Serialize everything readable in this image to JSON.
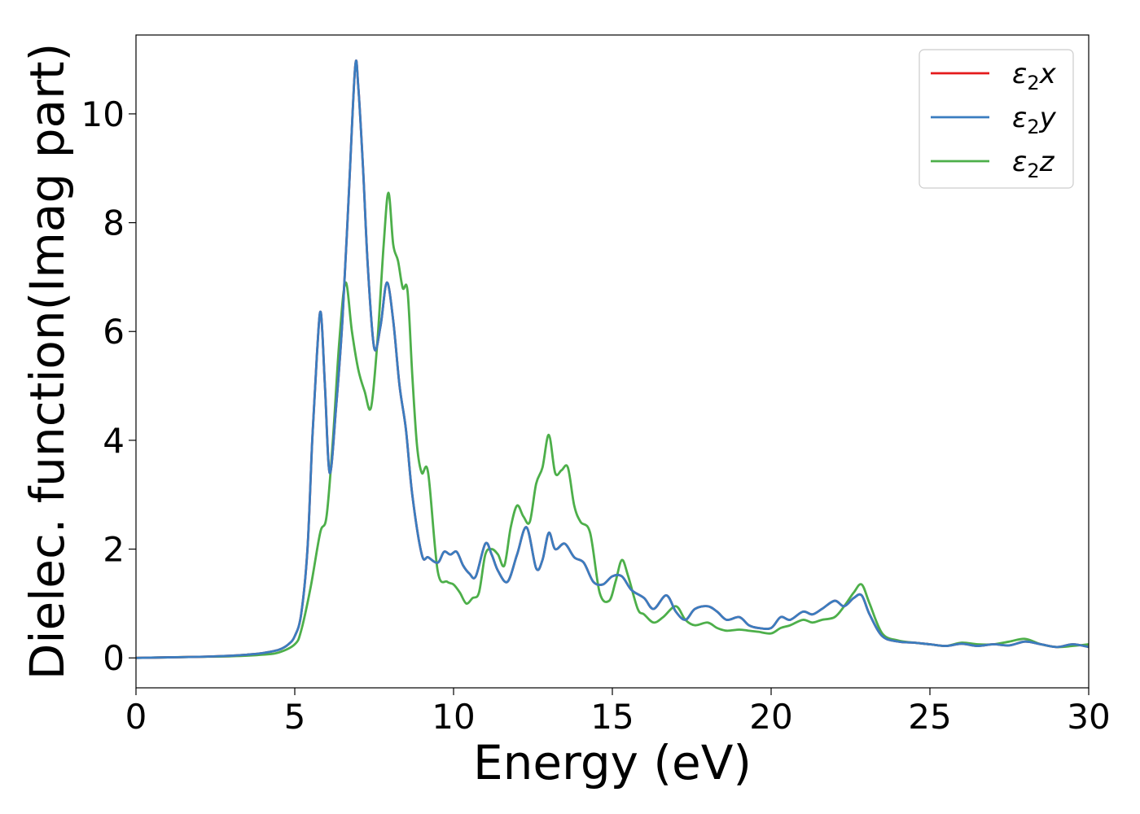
{
  "chart_data": {
    "type": "line",
    "xlabel": "Energy (eV)",
    "ylabel": "Dielec. function(Imag part)",
    "xlim": [
      0,
      30
    ],
    "ylim": [
      -0.55,
      11.45
    ],
    "xticks": [
      0,
      5,
      10,
      15,
      20,
      25,
      30
    ],
    "yticks": [
      0,
      2,
      4,
      6,
      8,
      10
    ],
    "grid": false,
    "legend_position": "top-right",
    "series": [
      {
        "name": "ε₂x",
        "legend_main": "ε",
        "legend_sub": "2",
        "legend_var": "x",
        "color": "#e41a1c",
        "x": [
          0,
          1,
          2,
          3,
          3.5,
          4,
          4.5,
          4.8,
          5.0,
          5.2,
          5.4,
          5.55,
          5.7,
          5.82,
          5.95,
          6.1,
          6.3,
          6.5,
          6.7,
          6.9,
          7.0,
          7.15,
          7.3,
          7.5,
          7.7,
          7.9,
          8.1,
          8.3,
          8.5,
          8.7,
          9.0,
          9.2,
          9.5,
          9.7,
          9.9,
          10.1,
          10.3,
          10.5,
          10.7,
          11.0,
          11.2,
          11.4,
          11.7,
          12.0,
          12.3,
          12.6,
          12.8,
          13.0,
          13.2,
          13.5,
          13.8,
          14.1,
          14.4,
          14.7,
          15.0,
          15.3,
          15.6,
          16.0,
          16.3,
          16.7,
          17.0,
          17.3,
          17.6,
          18.0,
          18.3,
          18.6,
          19.0,
          19.3,
          19.6,
          20.0,
          20.3,
          20.6,
          21.0,
          21.3,
          21.6,
          22.0,
          22.3,
          22.6,
          22.85,
          23.1,
          23.5,
          24.0,
          24.5,
          25.0,
          25.5,
          26.0,
          26.5,
          27.0,
          27.5,
          28.0,
          28.5,
          29.0,
          29.5,
          30.0
        ],
        "y": [
          0,
          0.01,
          0.02,
          0.04,
          0.06,
          0.09,
          0.15,
          0.25,
          0.4,
          0.8,
          2.0,
          4.0,
          5.6,
          6.35,
          5.0,
          3.4,
          4.6,
          6.2,
          8.5,
          10.85,
          10.5,
          9.0,
          7.2,
          5.7,
          6.1,
          6.9,
          6.2,
          5.0,
          4.2,
          3.0,
          1.9,
          1.85,
          1.75,
          1.95,
          1.9,
          1.95,
          1.7,
          1.55,
          1.5,
          2.1,
          1.9,
          1.6,
          1.4,
          1.9,
          2.4,
          1.65,
          1.8,
          2.3,
          2.0,
          2.1,
          1.85,
          1.75,
          1.4,
          1.35,
          1.5,
          1.5,
          1.25,
          1.1,
          0.9,
          1.15,
          0.85,
          0.7,
          0.9,
          0.95,
          0.85,
          0.7,
          0.75,
          0.6,
          0.55,
          0.55,
          0.75,
          0.7,
          0.85,
          0.8,
          0.9,
          1.05,
          0.95,
          1.1,
          1.15,
          0.8,
          0.4,
          0.3,
          0.28,
          0.25,
          0.22,
          0.26,
          0.22,
          0.25,
          0.23,
          0.3,
          0.25,
          0.2,
          0.25,
          0.2
        ]
      },
      {
        "name": "ε₂y",
        "legend_main": "ε",
        "legend_sub": "2",
        "legend_var": "y",
        "color": "#3a7dc0",
        "x": [
          0,
          1,
          2,
          3,
          3.5,
          4,
          4.5,
          4.8,
          5.0,
          5.2,
          5.4,
          5.55,
          5.7,
          5.82,
          5.95,
          6.1,
          6.3,
          6.5,
          6.7,
          6.9,
          7.0,
          7.15,
          7.3,
          7.5,
          7.7,
          7.9,
          8.1,
          8.3,
          8.5,
          8.7,
          9.0,
          9.2,
          9.5,
          9.7,
          9.9,
          10.1,
          10.3,
          10.5,
          10.7,
          11.0,
          11.2,
          11.4,
          11.7,
          12.0,
          12.3,
          12.6,
          12.8,
          13.0,
          13.2,
          13.5,
          13.8,
          14.1,
          14.4,
          14.7,
          15.0,
          15.3,
          15.6,
          16.0,
          16.3,
          16.7,
          17.0,
          17.3,
          17.6,
          18.0,
          18.3,
          18.6,
          19.0,
          19.3,
          19.6,
          20.0,
          20.3,
          20.6,
          21.0,
          21.3,
          21.6,
          22.0,
          22.3,
          22.6,
          22.85,
          23.1,
          23.5,
          24.0,
          24.5,
          25.0,
          25.5,
          26.0,
          26.5,
          27.0,
          27.5,
          28.0,
          28.5,
          29.0,
          29.5,
          30.0
        ],
        "y": [
          0,
          0.01,
          0.02,
          0.04,
          0.06,
          0.09,
          0.15,
          0.25,
          0.4,
          0.8,
          2.0,
          4.0,
          5.6,
          6.35,
          5.0,
          3.4,
          4.6,
          6.2,
          8.5,
          10.85,
          10.5,
          9.0,
          7.2,
          5.7,
          6.1,
          6.9,
          6.2,
          5.0,
          4.2,
          3.0,
          1.9,
          1.85,
          1.75,
          1.95,
          1.9,
          1.95,
          1.7,
          1.55,
          1.5,
          2.1,
          1.9,
          1.6,
          1.4,
          1.9,
          2.4,
          1.65,
          1.8,
          2.3,
          2.0,
          2.1,
          1.85,
          1.75,
          1.4,
          1.35,
          1.5,
          1.5,
          1.25,
          1.1,
          0.9,
          1.15,
          0.85,
          0.7,
          0.9,
          0.95,
          0.85,
          0.7,
          0.75,
          0.6,
          0.55,
          0.55,
          0.75,
          0.7,
          0.85,
          0.8,
          0.9,
          1.05,
          0.95,
          1.1,
          1.15,
          0.8,
          0.4,
          0.3,
          0.28,
          0.25,
          0.22,
          0.26,
          0.22,
          0.25,
          0.23,
          0.3,
          0.25,
          0.2,
          0.25,
          0.2
        ]
      },
      {
        "name": "ε₂z",
        "legend_main": "ε",
        "legend_sub": "2",
        "legend_var": "z",
        "color": "#4daf4a",
        "x": [
          0,
          1,
          2,
          3,
          4,
          4.5,
          5.0,
          5.2,
          5.5,
          5.8,
          6.0,
          6.2,
          6.4,
          6.6,
          6.8,
          7.0,
          7.2,
          7.4,
          7.6,
          7.8,
          7.95,
          8.1,
          8.25,
          8.4,
          8.55,
          8.7,
          8.85,
          9.0,
          9.2,
          9.5,
          9.8,
          10.0,
          10.2,
          10.4,
          10.6,
          10.8,
          11.0,
          11.2,
          11.4,
          11.6,
          11.8,
          12.0,
          12.2,
          12.4,
          12.6,
          12.8,
          13.0,
          13.2,
          13.4,
          13.6,
          13.8,
          14.0,
          14.3,
          14.6,
          14.9,
          15.1,
          15.3,
          15.5,
          15.8,
          16.0,
          16.3,
          16.6,
          17.0,
          17.3,
          17.6,
          18.0,
          18.3,
          18.6,
          19.0,
          19.3,
          19.6,
          20.0,
          20.3,
          20.6,
          21.0,
          21.3,
          21.6,
          22.0,
          22.3,
          22.6,
          22.85,
          23.1,
          23.5,
          24.0,
          24.5,
          25.0,
          25.5,
          26.0,
          26.5,
          27.0,
          27.5,
          28.0,
          28.5,
          29.0,
          29.5,
          30.0
        ],
        "y": [
          0,
          0.01,
          0.02,
          0.03,
          0.06,
          0.1,
          0.25,
          0.5,
          1.3,
          2.3,
          2.6,
          4.0,
          5.8,
          6.9,
          6.0,
          5.3,
          4.9,
          4.6,
          5.8,
          7.6,
          8.55,
          7.6,
          7.3,
          6.8,
          6.75,
          5.2,
          3.9,
          3.4,
          3.4,
          1.6,
          1.4,
          1.35,
          1.2,
          1.0,
          1.1,
          1.2,
          1.9,
          2.0,
          1.9,
          1.7,
          2.4,
          2.8,
          2.6,
          2.5,
          3.2,
          3.5,
          4.1,
          3.4,
          3.45,
          3.5,
          2.8,
          2.5,
          2.3,
          1.2,
          1.05,
          1.4,
          1.8,
          1.5,
          0.9,
          0.8,
          0.65,
          0.75,
          0.95,
          0.7,
          0.6,
          0.65,
          0.55,
          0.5,
          0.52,
          0.5,
          0.48,
          0.45,
          0.55,
          0.6,
          0.7,
          0.65,
          0.7,
          0.75,
          0.95,
          1.2,
          1.35,
          1.0,
          0.45,
          0.32,
          0.28,
          0.25,
          0.22,
          0.28,
          0.25,
          0.25,
          0.3,
          0.35,
          0.25,
          0.2,
          0.22,
          0.25
        ]
      }
    ]
  }
}
